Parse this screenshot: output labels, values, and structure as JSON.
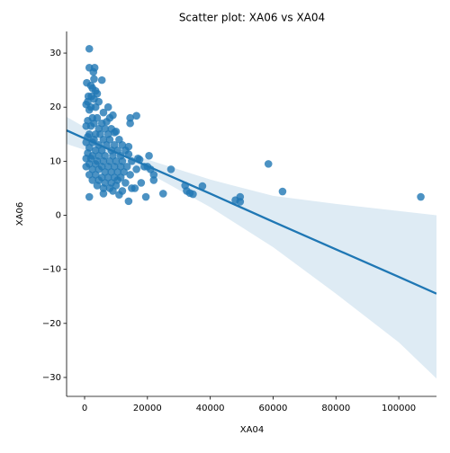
{
  "chart_data": {
    "type": "scatter",
    "title": "Scatter plot: XA06 vs XA04",
    "x_label": "XA04",
    "y_label": "XA06",
    "color": "#1f77b4",
    "x": [
      1500,
      1500,
      3200,
      2800,
      5500,
      3000,
      700,
      2000,
      2500,
      3500,
      4000,
      1200,
      2200,
      3000,
      1000,
      4500,
      500,
      2000,
      3500,
      7500,
      1500,
      6000,
      9000,
      2500,
      4000,
      8000,
      1000,
      3000,
      5500,
      7000,
      500,
      2000,
      4500,
      6500,
      8500,
      10000,
      1500,
      3500,
      5000,
      7500,
      9500,
      1000,
      3000,
      6000,
      8000,
      11000,
      500,
      2500,
      4500,
      7000,
      9500,
      12000,
      14000,
      1500,
      3500,
      5500,
      8500,
      10500,
      13000,
      1000,
      2500,
      4500,
      6500,
      9000,
      11500,
      14000,
      500,
      2000,
      4000,
      6000,
      8000,
      10000,
      12000,
      15000,
      17000,
      1500,
      3500,
      5500,
      7500,
      9500,
      11500,
      13500,
      19000,
      500,
      2500,
      4500,
      6500,
      8500,
      10500,
      12500,
      16500,
      1500,
      3500,
      5500,
      7500,
      9500,
      11500,
      14500,
      2500,
      4500,
      6500,
      8500,
      10500,
      13000,
      18000,
      4000,
      6000,
      8000,
      10000,
      12000,
      15000,
      16000,
      1500,
      6000,
      9000,
      11000,
      14000,
      19500,
      14500,
      14500,
      16500,
      17500,
      20500,
      20000,
      21000,
      22000,
      22000,
      25000,
      27500,
      32000,
      32500,
      33500,
      34500,
      37500,
      48000,
      49500,
      49500,
      58500,
      63000,
      107000
    ],
    "y": [
      30.8,
      27.3,
      27.3,
      26.5,
      25,
      25.2,
      24.5,
      24,
      23.5,
      23,
      22.5,
      22,
      22,
      21.5,
      21,
      21,
      20.5,
      20,
      20,
      20,
      19.5,
      19,
      18.5,
      18,
      18,
      18,
      17.5,
      17,
      17,
      17.3,
      16.5,
      16.5,
      16,
      16,
      16,
      15.5,
      15,
      15,
      15,
      15,
      15.3,
      14.5,
      14,
      14,
      14,
      14,
      13.5,
      13.5,
      13,
      13,
      13,
      13,
      12.7,
      12.5,
      12,
      12,
      12,
      12,
      12,
      11.5,
      11,
      11,
      11,
      11,
      11,
      11.3,
      10.5,
      10.5,
      10,
      10,
      10,
      10,
      10,
      10,
      10.5,
      9.5,
      9.5,
      9,
      9,
      9,
      9,
      9,
      9,
      9,
      8.5,
      8.5,
      8,
      8,
      8,
      8,
      8.5,
      7.5,
      7.5,
      7,
      7,
      7,
      7,
      7.5,
      6.5,
      6.5,
      6,
      6,
      6.5,
      6,
      6,
      5.5,
      5,
      5,
      5.5,
      4.5,
      5,
      5,
      3.4,
      4,
      4.5,
      3.8,
      2.6,
      3.4,
      18,
      17,
      18.4,
      10.3,
      11,
      9,
      8.5,
      7.5,
      6.5,
      4,
      8.5,
      5.5,
      4.5,
      4.1,
      3.9,
      5.4,
      2.8,
      3.4,
      2.5,
      9.5,
      4.4,
      3.4
    ],
    "fit": {
      "x": [
        -5730,
        0,
        10000,
        20000,
        40000,
        60000,
        80000,
        100000,
        112000
      ],
      "values": [
        15.7,
        14.2,
        11.6,
        9.1,
        4.0,
        -1.2,
        -6.3,
        -11.4,
        -14.5
      ],
      "upper": [
        18.2,
        16.3,
        12.3,
        10.3,
        6.6,
        3.6,
        2.1,
        0.8,
        0
      ],
      "lower": [
        13.2,
        12.1,
        10.9,
        7.9,
        1.5,
        -5.9,
        -14.5,
        -23.5,
        -30.2
      ]
    },
    "xlim": [
      -5730,
      112000
    ],
    "ylim": [
      -33.5,
      34
    ],
    "xticks": [
      0,
      20000,
      40000,
      60000,
      80000,
      100000
    ],
    "yticks": [
      {
        "value": -30,
        "label": "−30"
      },
      {
        "value": -20,
        "label": "−20"
      },
      {
        "value": -10,
        "label": "−10"
      },
      0,
      10,
      20,
      30
    ]
  }
}
